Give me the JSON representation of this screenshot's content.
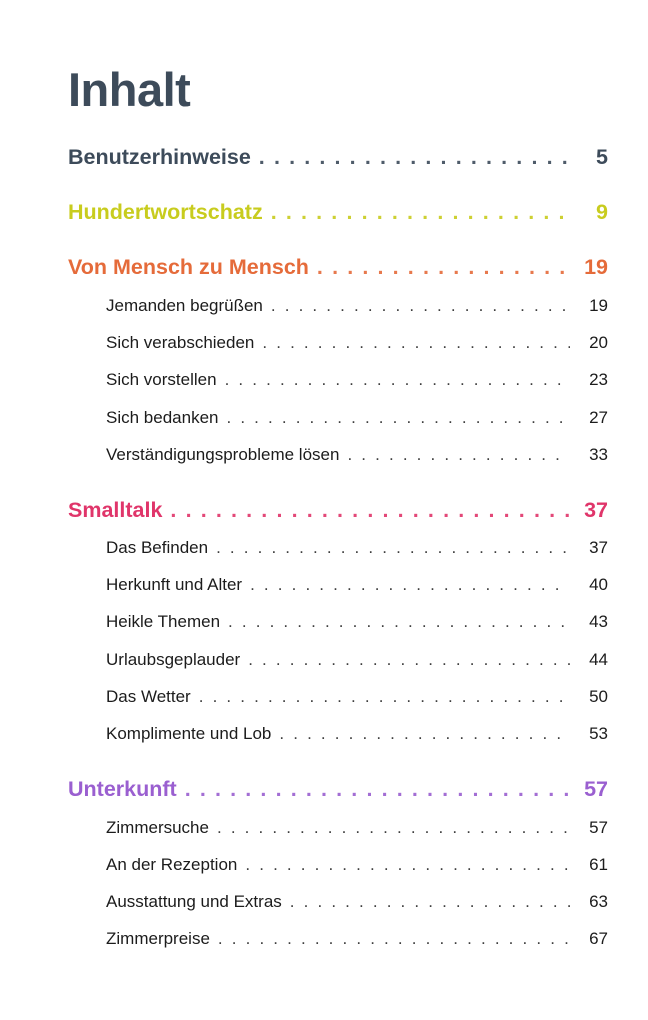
{
  "title": "Inhalt",
  "dots": ". . . . . . . . . . . . . . . . . . . . . . . . . . . . . . . . . . . . . . . . . . . . . . . . . . . . . . . . . . . . . . . . . . . . . . . . . . . . . . . . . . . . . . . . . . . .",
  "sections": [
    {
      "label": "Benutzerhinweise",
      "page": "5",
      "color": "#3d4b5a",
      "items": []
    },
    {
      "label": "Hundertwortschatz",
      "page": "9",
      "color": "#c8cc1e",
      "items": []
    },
    {
      "label": "Von Mensch zu Mensch",
      "page": "19",
      "color": "#e56b3a",
      "items": [
        {
          "label": "Jemanden begrüßen",
          "page": "19"
        },
        {
          "label": "Sich verabschieden",
          "page": "20"
        },
        {
          "label": "Sich vorstellen",
          "page": "23"
        },
        {
          "label": "Sich bedanken",
          "page": "27"
        },
        {
          "label": "Verständigungsprobleme lösen",
          "page": "33"
        }
      ]
    },
    {
      "label": "Smalltalk",
      "page": "37",
      "color": "#e0356a",
      "items": [
        {
          "label": "Das Befinden",
          "page": "37"
        },
        {
          "label": "Herkunft und Alter",
          "page": "40"
        },
        {
          "label": "Heikle Themen",
          "page": "43"
        },
        {
          "label": "Urlaubsgeplauder",
          "page": "44"
        },
        {
          "label": "Das Wetter",
          "page": "50"
        },
        {
          "label": "Komplimente und Lob",
          "page": "53"
        }
      ]
    },
    {
      "label": "Unterkunft",
      "page": "57",
      "color": "#9a5fd0",
      "items": [
        {
          "label": "Zimmersuche",
          "page": "57"
        },
        {
          "label": "An der Rezeption",
          "page": "61"
        },
        {
          "label": "Ausstattung und Extras",
          "page": "63"
        },
        {
          "label": "Zimmerpreise",
          "page": "67"
        }
      ]
    }
  ]
}
